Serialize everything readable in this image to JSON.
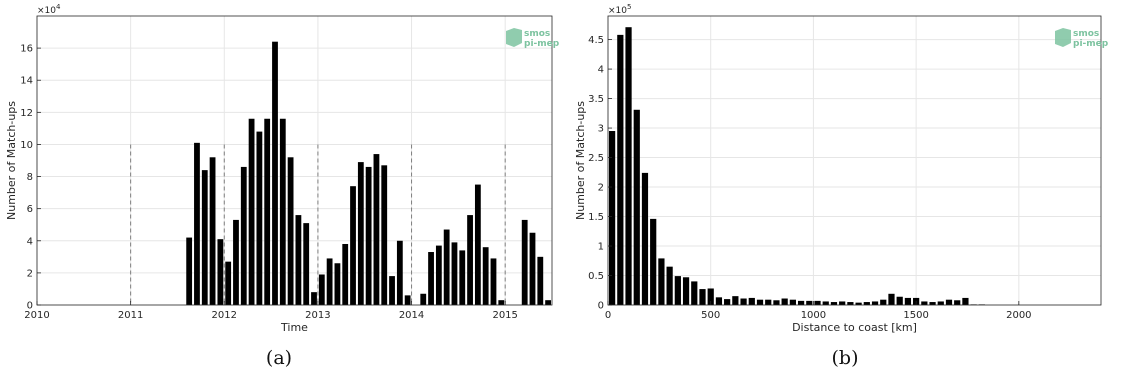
{
  "colors": {
    "bar": "#000000",
    "grid": "#e6e6e6",
    "dashed": "#7f7f7f",
    "axis": "#262626",
    "logo": "#7dc3a0"
  },
  "logo": {
    "line1": "smos",
    "line2": "pi-mep"
  },
  "chart_data": [
    {
      "type": "bar",
      "caption": "(a)",
      "xlabel": "Time",
      "ylabel": "Number of Match-ups",
      "y_multiplier": "×10",
      "y_exponent": "4",
      "xlim": [
        2010,
        2015.5
      ],
      "ylim": [
        0,
        18
      ],
      "xticks": [
        2010,
        2011,
        2012,
        2013,
        2014,
        2015
      ],
      "yticks": [
        0,
        2,
        4,
        6,
        8,
        10,
        12,
        14,
        16
      ],
      "grid": true,
      "year_separators": [
        2011,
        2012,
        2013,
        2014,
        2015
      ],
      "months": [
        "2011-08",
        "2011-09",
        "2011-10",
        "2011-11",
        "2011-12",
        "2012-01",
        "2012-02",
        "2012-03",
        "2012-04",
        "2012-05",
        "2012-06",
        "2012-07",
        "2012-08",
        "2012-09",
        "2012-10",
        "2012-11",
        "2012-12",
        "2013-01",
        "2013-02",
        "2013-03",
        "2013-04",
        "2013-05",
        "2013-06",
        "2013-07",
        "2013-08",
        "2013-09",
        "2013-10",
        "2013-11",
        "2013-12",
        "2014-01",
        "2014-02",
        "2014-03",
        "2014-04",
        "2014-05",
        "2014-06",
        "2014-07",
        "2014-08",
        "2014-09",
        "2014-10",
        "2014-11",
        "2014-12",
        "2015-01",
        "2015-02",
        "2015-03",
        "2015-04",
        "2015-05",
        "2015-06",
        "2015-07"
      ],
      "values": [
        4.2,
        10.1,
        8.4,
        9.2,
        4.1,
        2.7,
        5.3,
        8.6,
        11.6,
        10.8,
        11.6,
        16.4,
        11.6,
        9.2,
        5.6,
        5.1,
        0.8,
        1.9,
        2.9,
        2.6,
        3.8,
        7.4,
        8.9,
        8.6,
        9.4,
        8.7,
        1.8,
        4.0,
        0.6,
        0,
        0.7,
        3.3,
        3.7,
        4.7,
        3.9,
        3.4,
        5.6,
        7.5,
        3.6,
        2.9,
        0.3,
        0,
        0,
        5.3,
        4.5,
        3.0,
        0.3,
        0
      ]
    },
    {
      "type": "bar",
      "caption": "(b)",
      "xlabel": "Distance to coast [km]",
      "ylabel": "Number of Match-ups",
      "y_multiplier": "×10",
      "y_exponent": "5",
      "xlim": [
        0,
        2400
      ],
      "ylim": [
        0,
        4.9
      ],
      "xticks": [
        0,
        500,
        1000,
        1500,
        2000
      ],
      "yticks": [
        0,
        0.5,
        1,
        1.5,
        2,
        2.5,
        3,
        3.5,
        4,
        4.5
      ],
      "ytick_labels": [
        "0",
        "0.5",
        "1",
        "1.5",
        "2",
        "2.5",
        "3",
        "3.5",
        "4",
        "4.5"
      ],
      "grid": true,
      "bin_width": 40,
      "bin_centers": [
        20,
        60,
        100,
        140,
        180,
        220,
        260,
        300,
        340,
        380,
        420,
        460,
        500,
        540,
        580,
        620,
        660,
        700,
        740,
        780,
        820,
        860,
        900,
        940,
        980,
        1020,
        1060,
        1100,
        1140,
        1180,
        1220,
        1260,
        1300,
        1340,
        1380,
        1420,
        1460,
        1500,
        1540,
        1580,
        1620,
        1660,
        1700,
        1740,
        1780,
        1820,
        1860,
        1900,
        1940,
        1980,
        2020
      ],
      "values": [
        2.95,
        4.58,
        4.71,
        3.31,
        2.24,
        1.46,
        0.79,
        0.65,
        0.49,
        0.47,
        0.4,
        0.27,
        0.28,
        0.13,
        0.1,
        0.15,
        0.11,
        0.12,
        0.09,
        0.09,
        0.08,
        0.11,
        0.09,
        0.07,
        0.07,
        0.07,
        0.06,
        0.05,
        0.06,
        0.05,
        0.04,
        0.05,
        0.06,
        0.09,
        0.19,
        0.14,
        0.12,
        0.12,
        0.06,
        0.05,
        0.06,
        0.09,
        0.08,
        0.12,
        0.01,
        0.01,
        0,
        0,
        0,
        0,
        0
      ]
    }
  ]
}
